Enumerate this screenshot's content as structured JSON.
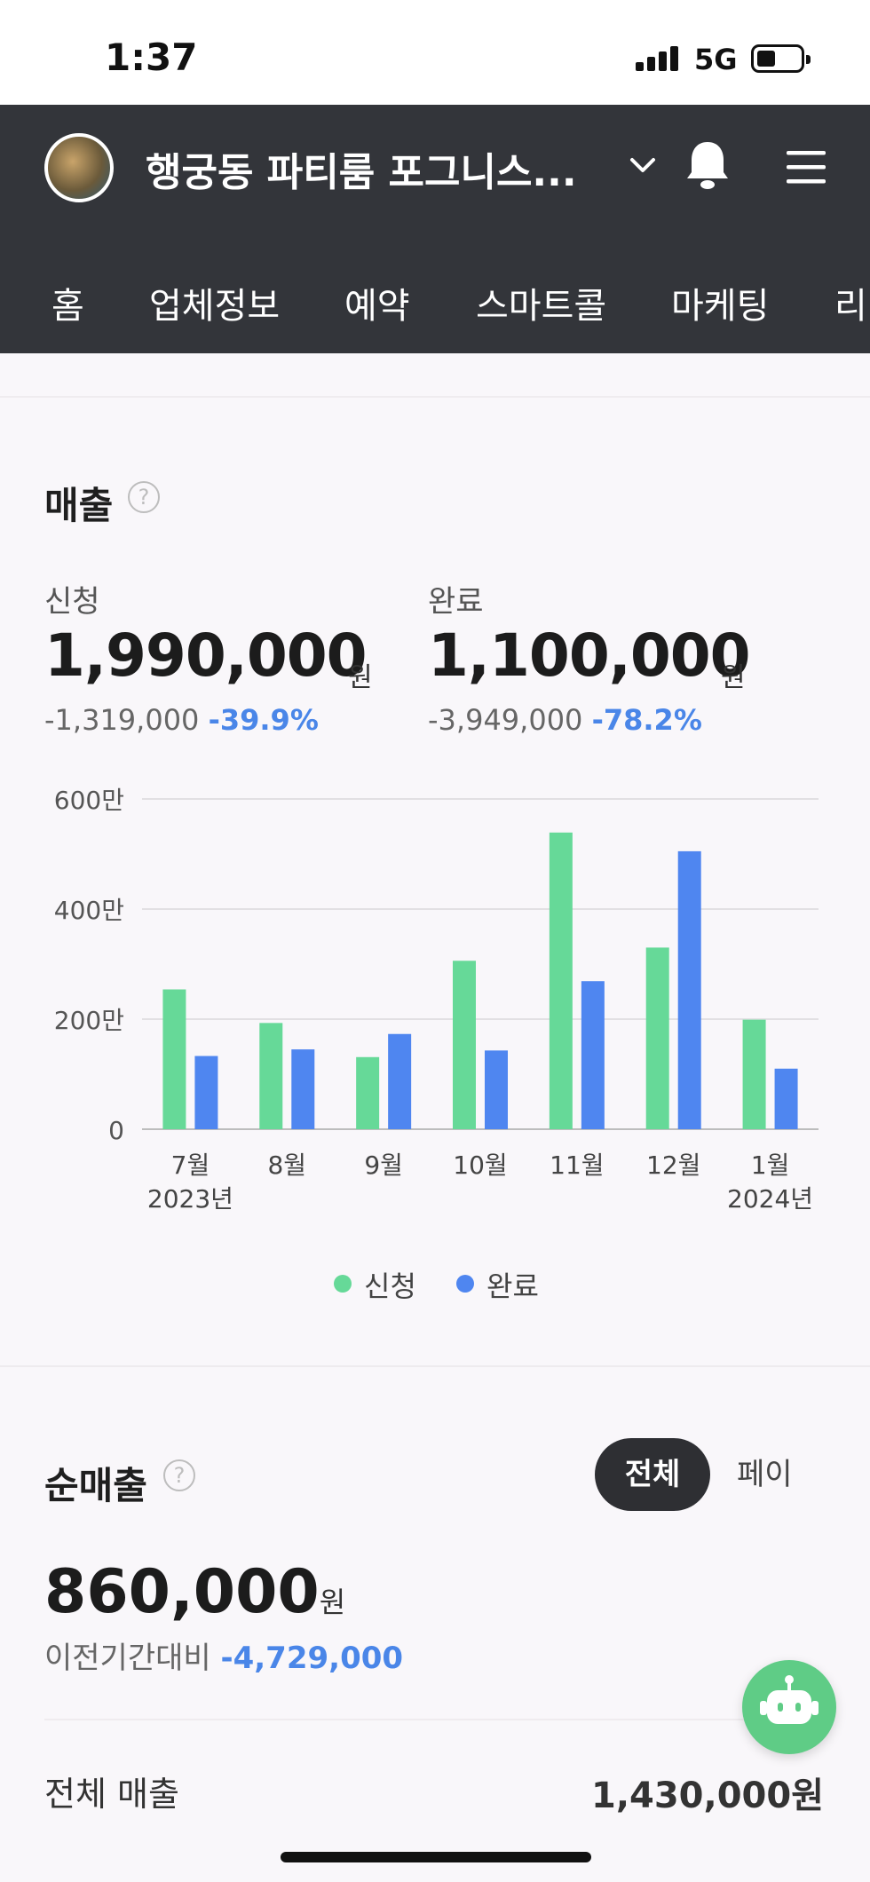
{
  "status_bar": {
    "time": "1:37",
    "network": "5G"
  },
  "header": {
    "store_name": "행궁동 파티룸 포그니스...",
    "tabs": [
      "홈",
      "업체정보",
      "예약",
      "스마트콜",
      "마케팅",
      "리"
    ]
  },
  "sales": {
    "title": "매출",
    "applied": {
      "label": "신청",
      "amount": "1,990,000",
      "unit": "원",
      "change": "-1,319,000",
      "change_pct": "-39.9%"
    },
    "completed": {
      "label": "완료",
      "amount": "1,100,000",
      "unit": "원",
      "change": "-3,949,000",
      "change_pct": "-78.2%"
    }
  },
  "chart_data": {
    "type": "bar",
    "categories": [
      "7월",
      "8월",
      "9월",
      "10월",
      "11월",
      "12월",
      "1월"
    ],
    "category_sublabels": [
      "2023년",
      "",
      "",
      "",
      "",
      "",
      "2024년"
    ],
    "series": [
      {
        "name": "신청",
        "color": "#66d998",
        "values": [
          2540000,
          1930000,
          1310000,
          3060000,
          5390000,
          3300000,
          1990000
        ]
      },
      {
        "name": "완료",
        "color": "#4f86f0",
        "values": [
          1330000,
          1450000,
          1730000,
          1430000,
          2690000,
          5050000,
          1100000
        ]
      }
    ],
    "ylim": [
      0,
      6000000
    ],
    "yticks": [
      0,
      2000000,
      4000000,
      6000000
    ],
    "ytick_labels": [
      "0",
      "200만",
      "400만",
      "600만"
    ],
    "grid": true,
    "legend": "bottom"
  },
  "net_sales": {
    "title": "순매출",
    "segment_active": "전체",
    "segment_inactive": "페이",
    "amount": "860,000",
    "unit": "원",
    "compare_label": "이전기간대비",
    "compare_value": "-4,729,000",
    "row_label": "전체 매출",
    "row_value": "1,430,000원"
  },
  "colors": {
    "header_bg": "#33353a",
    "accent_blue": "#4a86e8",
    "applied_green": "#66d998",
    "completed_blue": "#4f86f0",
    "bot_green": "#5fcc86"
  }
}
